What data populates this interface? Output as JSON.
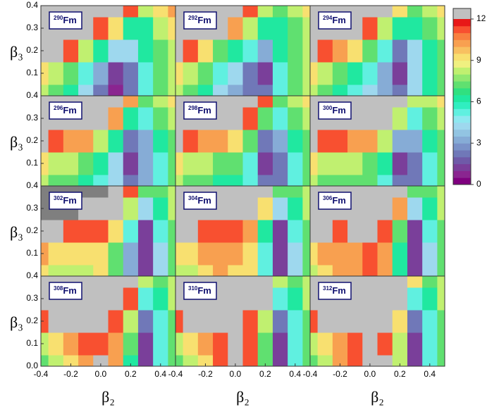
{
  "chart_data": {
    "type": "contour",
    "xlabel": "β₂",
    "ylabel": "β₃",
    "x": [
      -0.4,
      -0.3,
      -0.2,
      -0.1,
      0,
      0.1,
      0.2,
      0.3,
      0.4,
      0.5
    ],
    "y": [
      0,
      0.1,
      0.2,
      0.3,
      0.4
    ],
    "xlim": [
      -0.4,
      0.5
    ],
    "ylim": [
      0,
      0.4
    ],
    "xticks": [
      -0.4,
      -0.2,
      {
        "value": 0,
        "label": "0.0"
      },
      0.2,
      0.4
    ],
    "yticks": [
      {
        "value": 0,
        "label": "0.0"
      },
      0.1,
      0.2,
      0.3,
      0.4
    ],
    "zlim": [
      0,
      12
    ],
    "zticks": [
      0,
      3,
      6,
      9,
      12
    ],
    "colors": [
      "#7f007f",
      "#8a2590",
      "#7a3f9a",
      "#6f5aa8",
      "#7078b8",
      "#7a92c8",
      "#86acd6",
      "#92c4e2",
      "#9ed8ee",
      "#8ee8f0",
      "#60f0e0",
      "#30eec0",
      "#20e8a0",
      "#30e080",
      "#60e070",
      "#90e870",
      "#c0f070",
      "#f0f080",
      "#f8e070",
      "#f8c060",
      "#f8a050",
      "#f88040",
      "#f85030",
      "#e81818"
    ],
    "over_colors": [
      {
        "min": 12,
        "color": "#c0c0c0"
      },
      {
        "min": 15,
        "color": "#7f7f7f"
      }
    ],
    "panels": [
      {
        "mass": "290",
        "element": "Fm",
        "values": [
          [
            8,
            7,
            6,
            4,
            2,
            0.5,
            2,
            5,
            7,
            8
          ],
          [
            9,
            8,
            7,
            5,
            3,
            1,
            2,
            5,
            7,
            8
          ],
          [
            13,
            12,
            11,
            8,
            6,
            4,
            4,
            6,
            7,
            8
          ],
          [
            13,
            13,
            13,
            13,
            11,
            9,
            6,
            6,
            8,
            9
          ],
          [
            13,
            13,
            13,
            13,
            13,
            13,
            11,
            8,
            9,
            10
          ]
        ]
      },
      {
        "mass": "292",
        "element": "Fm",
        "values": [
          [
            8,
            7,
            6,
            4,
            3,
            2,
            2,
            5,
            7,
            8
          ],
          [
            9,
            8,
            7,
            5,
            4,
            2,
            1,
            5,
            7,
            8
          ],
          [
            12,
            11,
            9,
            7,
            6,
            5,
            3,
            6,
            7,
            8
          ],
          [
            13,
            13,
            13,
            12,
            10,
            8,
            6,
            6,
            7,
            8
          ],
          [
            13,
            13,
            13,
            13,
            13,
            11,
            8,
            7,
            8,
            9
          ]
        ]
      },
      {
        "mass": "294",
        "element": "Fm",
        "values": [
          [
            8,
            7,
            6,
            5,
            4,
            3,
            2,
            4,
            6,
            7
          ],
          [
            9,
            8,
            7,
            6,
            5,
            3,
            1,
            4,
            6,
            7
          ],
          [
            12,
            11,
            10,
            9,
            7,
            5,
            2,
            4,
            6,
            7
          ],
          [
            13,
            13,
            13,
            13,
            11,
            8,
            6,
            6,
            7,
            8
          ],
          [
            13,
            13,
            13,
            13,
            13,
            12,
            9,
            7,
            8,
            9
          ]
        ]
      },
      {
        "mass": "296",
        "element": "Fm",
        "values": [
          [
            8,
            7,
            7,
            6,
            5,
            4,
            2,
            3,
            5,
            7
          ],
          [
            9,
            8,
            8,
            7,
            6,
            4,
            1,
            3,
            5,
            7
          ],
          [
            12,
            11,
            10,
            10,
            8,
            6,
            2,
            3,
            6,
            7
          ],
          [
            13,
            13,
            13,
            13,
            13,
            10,
            6,
            5,
            7,
            8
          ],
          [
            13,
            13,
            13,
            13,
            13,
            13,
            10,
            7,
            8,
            9
          ]
        ]
      },
      {
        "mass": "298",
        "element": "Fm",
        "values": [
          [
            8,
            7,
            7,
            6,
            6,
            5,
            2,
            2,
            5,
            7
          ],
          [
            9,
            8,
            8,
            7,
            7,
            5,
            1,
            2,
            5,
            7
          ],
          [
            12,
            11,
            10,
            10,
            9,
            7,
            2,
            3,
            6,
            7
          ],
          [
            13,
            13,
            13,
            13,
            13,
            11,
            7,
            5,
            7,
            8
          ],
          [
            13,
            13,
            13,
            13,
            13,
            13,
            11,
            7,
            8,
            9
          ]
        ]
      },
      {
        "mass": "300",
        "element": "Fm",
        "values": [
          [
            8,
            7,
            7,
            7,
            7,
            5,
            2,
            2,
            5,
            7
          ],
          [
            9,
            8,
            8,
            8,
            7,
            6,
            1,
            2,
            5,
            7
          ],
          [
            12,
            11,
            11,
            10,
            10,
            8,
            3,
            3,
            6,
            7
          ],
          [
            13,
            13,
            13,
            13,
            13,
            12,
            8,
            5,
            7,
            8
          ],
          [
            13,
            13,
            13,
            13,
            13,
            13,
            12,
            8,
            8,
            9
          ]
        ]
      },
      {
        "mass": "302",
        "element": "Fm",
        "values": [
          [
            9,
            8,
            8,
            8,
            9,
            7,
            3,
            1,
            4,
            7
          ],
          [
            10,
            9,
            9,
            9,
            9,
            7,
            3,
            1,
            4,
            7
          ],
          [
            12,
            12,
            11,
            11,
            11,
            9,
            5,
            1,
            5,
            7
          ],
          [
            16,
            16,
            16,
            14,
            13,
            12,
            8,
            4,
            6,
            8
          ],
          [
            16,
            16,
            16,
            16,
            16,
            13,
            11,
            7,
            7,
            8
          ]
        ]
      },
      {
        "mass": "304",
        "element": "Fm",
        "values": [
          [
            8,
            8,
            9,
            10,
            9,
            9,
            5,
            1,
            4,
            7
          ],
          [
            9,
            9,
            10,
            10,
            10,
            9,
            5,
            1,
            4,
            7
          ],
          [
            12,
            12,
            11,
            11,
            11,
            10,
            6,
            1,
            5,
            7
          ],
          [
            13,
            13,
            13,
            13,
            13,
            13,
            9,
            4,
            6,
            8
          ],
          [
            13,
            13,
            13,
            13,
            13,
            13,
            12,
            7,
            7,
            8
          ]
        ]
      },
      {
        "mass": "306",
        "element": "Fm",
        "values": [
          [
            8,
            9,
            10,
            10,
            11,
            10,
            6,
            1,
            4,
            7
          ],
          [
            9,
            10,
            10,
            10,
            11,
            10,
            6,
            1,
            4,
            7
          ],
          [
            12,
            12,
            11,
            12,
            12,
            11,
            7,
            1,
            5,
            7
          ],
          [
            13,
            13,
            13,
            13,
            13,
            13,
            10,
            4,
            6,
            8
          ],
          [
            13,
            13,
            13,
            13,
            13,
            13,
            13,
            7,
            7,
            8
          ]
        ]
      },
      {
        "mass": "308",
        "element": "Fm",
        "values": [
          [
            7,
            8,
            9,
            10,
            12,
            10,
            6,
            1,
            5,
            7
          ],
          [
            8,
            9,
            10,
            11,
            11,
            10,
            7,
            1,
            5,
            7
          ],
          [
            11,
            12,
            12,
            12,
            12,
            11,
            8,
            2,
            5,
            7
          ],
          [
            13,
            13,
            13,
            13,
            13,
            13,
            11,
            5,
            6,
            8
          ],
          [
            13,
            13,
            13,
            13,
            13,
            13,
            13,
            8,
            7,
            8
          ]
        ]
      },
      {
        "mass": "310",
        "element": "Fm",
        "values": [
          [
            7,
            8,
            9,
            11,
            13,
            11,
            7,
            1,
            5,
            7
          ],
          [
            8,
            9,
            10,
            11,
            12,
            11,
            7,
            1,
            5,
            7
          ],
          [
            11,
            12,
            12,
            12,
            12,
            11,
            8,
            2,
            5,
            7
          ],
          [
            13,
            13,
            13,
            13,
            13,
            13,
            12,
            5,
            6,
            8
          ],
          [
            13,
            13,
            13,
            13,
            13,
            13,
            13,
            8,
            7,
            8
          ]
        ]
      },
      {
        "mass": "312",
        "element": "Fm",
        "values": [
          [
            7,
            8,
            10,
            11,
            13,
            12,
            8,
            1,
            5,
            7
          ],
          [
            8,
            9,
            10,
            11,
            12,
            11,
            8,
            1,
            5,
            7
          ],
          [
            11,
            12,
            12,
            12,
            12,
            12,
            9,
            2,
            5,
            7
          ],
          [
            13,
            13,
            13,
            13,
            13,
            13,
            13,
            5,
            6,
            8
          ],
          [
            13,
            13,
            13,
            13,
            13,
            13,
            13,
            9,
            7,
            8
          ]
        ]
      }
    ]
  }
}
